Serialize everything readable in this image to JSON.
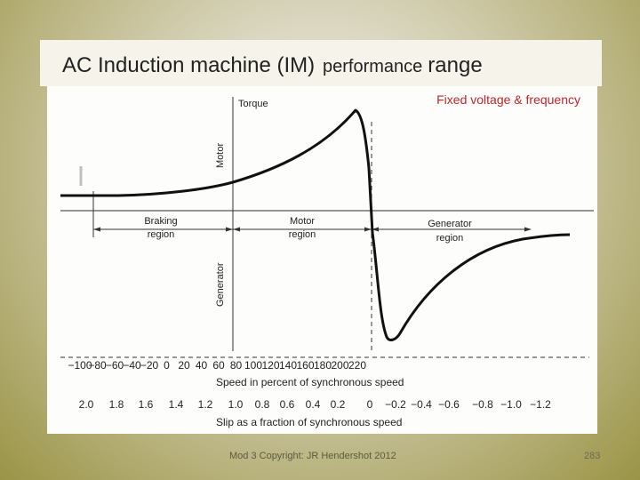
{
  "slide": {
    "title_part1": "AC Induction machine (IM)",
    "title_part2": "performance",
    "title_part3": "range",
    "footer": "Mod 3 Copyright: JR Hendershot 2012",
    "page_number": "283"
  },
  "figure": {
    "caption": "Fixed voltage & frequency",
    "torque_label": "Torque",
    "motor_axis_label": "Motor",
    "generator_axis_label": "Generator",
    "regions": [
      {
        "line1": "Braking",
        "line2": "region"
      },
      {
        "line1": "Motor",
        "line2": "region"
      },
      {
        "line1": "Generator",
        "line2": "region"
      }
    ],
    "speed_ticks": [
      "−100",
      "−80",
      "−60",
      "−40",
      "−20",
      "0",
      "20",
      "40",
      "60",
      "80",
      "100",
      "120",
      "140",
      "160",
      "180",
      "200",
      "220"
    ],
    "speed_axis_label": "Speed in percent of synchronous speed",
    "slip_ticks": [
      "2.0",
      "1.8",
      "1.6",
      "1.4",
      "1.2",
      "1.0",
      "0.8",
      "0.6",
      "0.4",
      "0.2",
      "0",
      "−0.2",
      "−0.4",
      "−0.6",
      "−0.8",
      "−1.0",
      "−1.2"
    ],
    "slip_axis_label": "Slip as a fraction of synchronous speed"
  }
}
